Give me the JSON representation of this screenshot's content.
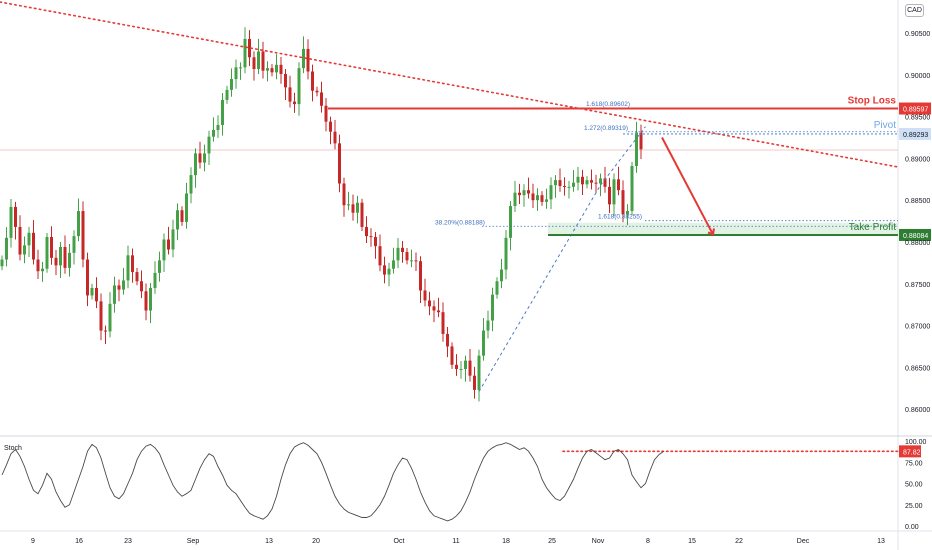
{
  "currency_badge": "CAD",
  "chart_data": {
    "type": "candlestick",
    "axis_x": {
      "tick_labels": [
        "9",
        "16",
        "23",
        "Sep",
        "13",
        "20",
        "Oct",
        "11",
        "18",
        "25",
        "Nov",
        "8",
        "15",
        "22",
        "Dec",
        "13"
      ]
    },
    "axis_y": {
      "range": [
        0.8575,
        0.908
      ],
      "tick_labels": [
        "0.90500",
        "0.90000",
        "0.89500",
        "0.89000",
        "0.88500",
        "0.88000",
        "0.87500",
        "0.87000",
        "0.86500",
        "0.86000"
      ],
      "tick_values": [
        0.905,
        0.9,
        0.895,
        0.89,
        0.885,
        0.88,
        0.875,
        0.87,
        0.865,
        0.86
      ]
    },
    "levels": {
      "stop_loss": {
        "label": "Stop Loss",
        "value": 0.89597,
        "badge": "0.89597",
        "color": "#e53935"
      },
      "pivot": {
        "label": "Pivot",
        "value": 0.89293,
        "badge": "0.89293",
        "color": "#4a90d9"
      },
      "take_profit": {
        "label": "Take Profit",
        "value": 0.88084,
        "badge": "0.88084",
        "color": "#2e7d32"
      }
    },
    "fib_labels": {
      "ext_1618_top": {
        "text": "1.618(0.89602)",
        "value": 0.89602
      },
      "ext_1272": {
        "text": "1.272(0.89319)",
        "value": 0.89319
      },
      "ret_382": {
        "text": "38.20%(0.88188)",
        "value": 0.88188
      },
      "ext_1618_low": {
        "text": "1.618(0.88255)",
        "value": 0.88255
      }
    },
    "trendline": {
      "style": "dotted",
      "color": "#e53935",
      "from": {
        "date": "Aug 2",
        "price": 0.9078
      },
      "to": {
        "date": "Dec 18",
        "price": 0.8893
      }
    },
    "series_close": [
      0.8779,
      0.8805,
      0.8842,
      0.8818,
      0.8785,
      0.8796,
      0.8811,
      0.8779,
      0.8765,
      0.8768,
      0.8806,
      0.8781,
      0.8772,
      0.8794,
      0.8769,
      0.8787,
      0.8807,
      0.8837,
      0.8779,
      0.8736,
      0.8745,
      0.8729,
      0.8694,
      0.8693,
      0.8726,
      0.8748,
      0.8743,
      0.8754,
      0.8784,
      0.8764,
      0.8753,
      0.8741,
      0.8718,
      0.8745,
      0.8763,
      0.8778,
      0.8803,
      0.8791,
      0.8815,
      0.8838,
      0.8824,
      0.8858,
      0.888,
      0.8906,
      0.8895,
      0.8906,
      0.8926,
      0.8934,
      0.894,
      0.897,
      0.8982,
      0.8995,
      0.9009,
      0.9009,
      0.9043,
      0.9021,
      0.9007,
      0.9028,
      0.9005,
      0.9008,
      0.9003,
      0.9012,
      0.9001,
      0.8985,
      0.8968,
      0.8965,
      0.9008,
      0.9031,
      0.9004,
      0.8981,
      0.8979,
      0.8963,
      0.8944,
      0.8932,
      0.8918,
      0.887,
      0.8844,
      0.8845,
      0.8835,
      0.8847,
      0.8818,
      0.8807,
      0.8806,
      0.8795,
      0.8772,
      0.8761,
      0.8768,
      0.8778,
      0.8793,
      0.8788,
      0.8778,
      0.8778,
      0.8777,
      0.8742,
      0.873,
      0.8723,
      0.8718,
      0.8716,
      0.869,
      0.8675,
      0.8653,
      0.8648,
      0.8648,
      0.8658,
      0.864,
      0.8623,
      0.8664,
      0.8694,
      0.8706,
      0.8737,
      0.8753,
      0.8767,
      0.8805,
      0.8843,
      0.8859,
      0.8856,
      0.8862,
      0.8858,
      0.885,
      0.8856,
      0.8848,
      0.8851,
      0.8868,
      0.8874,
      0.8867,
      0.8866,
      0.8866,
      0.8871,
      0.8878,
      0.8869,
      0.8874,
      0.8871,
      0.887,
      0.8876,
      0.8866,
      0.8845,
      0.8875,
      0.8862,
      0.8833,
      0.8837,
      0.8891,
      0.8931,
      0.8911
    ],
    "stochastic": {
      "label": "Stoch",
      "current_value": "87.82",
      "tick_labels": [
        "100.00",
        "75.00",
        "50.00",
        "25.00",
        "0.00"
      ],
      "tick_values": [
        100,
        75,
        50,
        25,
        0
      ],
      "overbought_line": 87.82,
      "values": [
        60,
        72,
        85,
        90,
        82,
        70,
        55,
        42,
        38,
        48,
        62,
        55,
        40,
        30,
        22,
        25,
        40,
        55,
        70,
        88,
        96,
        92,
        80,
        62,
        45,
        35,
        32,
        38,
        50,
        62,
        78,
        88,
        94,
        96,
        92,
        85,
        72,
        60,
        48,
        40,
        35,
        38,
        42,
        55,
        68,
        78,
        85,
        82,
        70,
        60,
        48,
        42,
        38,
        30,
        22,
        15,
        12,
        10,
        8,
        12,
        20,
        35,
        55,
        72,
        85,
        93,
        96,
        98,
        95,
        90,
        85,
        75,
        62,
        48,
        35,
        26,
        20,
        16,
        14,
        12,
        10,
        10,
        12,
        18,
        25,
        35,
        48,
        62,
        72,
        80,
        78,
        68,
        55,
        40,
        28,
        18,
        12,
        10,
        8,
        6,
        8,
        12,
        18,
        28,
        40,
        55,
        68,
        80,
        88,
        92,
        95,
        96,
        98,
        96,
        93,
        90,
        92,
        88,
        80,
        70,
        55,
        45,
        38,
        32,
        30,
        35,
        45,
        55,
        68,
        80,
        88,
        90,
        86,
        82,
        78,
        80,
        88,
        90,
        85,
        78,
        60,
        52,
        45,
        50,
        65,
        78,
        84,
        87.8
      ]
    }
  }
}
